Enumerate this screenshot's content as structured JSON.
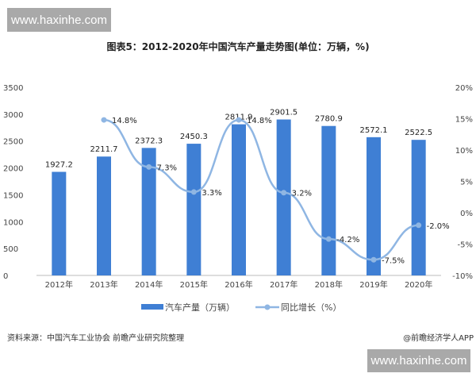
{
  "watermark": "www.haxinhe.com",
  "chart_data": {
    "type": "bar+line",
    "title": "图表5：2012-2020年中国汽车产量走势图(单位：万辆，%)",
    "categories": [
      "2012年",
      "2013年",
      "2014年",
      "2015年",
      "2016年",
      "2017年",
      "2018年",
      "2019年",
      "2020年"
    ],
    "series": [
      {
        "name": "汽车产量（万辆）",
        "type": "bar",
        "axis": "left",
        "values": [
          1927.2,
          2211.7,
          2372.3,
          2450.3,
          2811.9,
          2901.5,
          2780.9,
          2572.1,
          2522.5
        ],
        "labels": [
          "1927.2",
          "2211.7",
          "2372.3",
          "2450.3",
          "2811.9",
          "2901.5",
          "2780.9",
          "2572.1",
          "2522.5"
        ]
      },
      {
        "name": "同比增长（%）",
        "type": "line",
        "axis": "right",
        "values": [
          null,
          14.8,
          7.3,
          3.3,
          14.8,
          3.2,
          -4.2,
          -7.5,
          -2.0
        ],
        "labels": [
          "",
          "14.8%",
          "7.3%",
          "3.3%",
          "14.8%",
          "3.2%",
          "-4.2%",
          "-7.5%",
          "-2.0%"
        ]
      }
    ],
    "yleft": {
      "range": [
        0,
        3500
      ],
      "ticks": [
        "0",
        "500",
        "1000",
        "1500",
        "2000",
        "2500",
        "3000",
        "3500"
      ]
    },
    "yright": {
      "range": [
        -10,
        20
      ],
      "ticks": [
        "-10%",
        "-5%",
        "0%",
        "5%",
        "10%",
        "15%",
        "20%"
      ]
    },
    "legend": "bottom",
    "grid": false,
    "colors": {
      "bar": "#3f7fd4",
      "line": "#8fb6e3"
    }
  },
  "footer": {
    "source": "资料来源：中国汽车工业协会 前瞻产业研究院整理",
    "credit": "@前瞻经济学人APP"
  }
}
